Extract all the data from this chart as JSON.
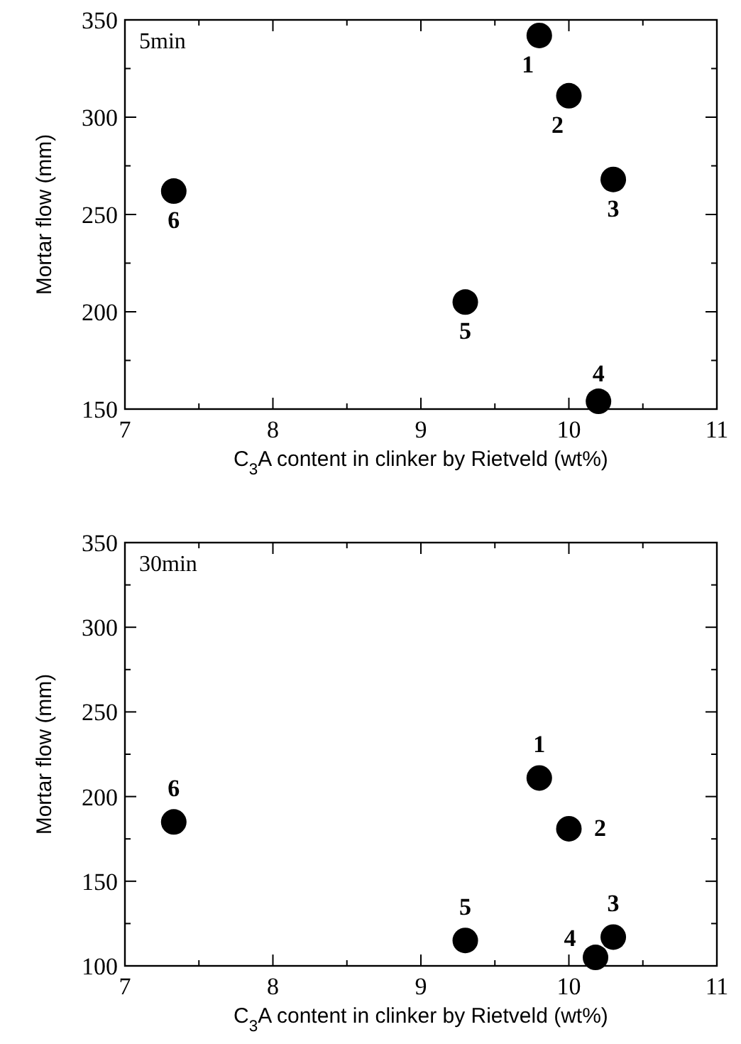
{
  "chart_data": [
    {
      "type": "scatter",
      "xlabel": "C$_{3}$A content in clinker by Rietveld (wt%)",
      "ylabel": "Mortar flow (mm)",
      "x": [
        9.8,
        10.0,
        10.3,
        10.2,
        9.3,
        7.33
      ],
      "values": [
        342,
        311,
        268,
        154,
        205,
        262
      ],
      "color": "#000000",
      "marker": "circle",
      "xlim": [
        7,
        11
      ],
      "ylim": [
        150,
        350
      ],
      "xticks": [
        7,
        {
          "value": 7.5,
          "label": null
        },
        8,
        {
          "value": 8.5,
          "label": null
        },
        9,
        {
          "value": 9.5,
          "label": null
        },
        10,
        {
          "value": 10.5,
          "label": null
        },
        11
      ],
      "yticks": [
        150,
        {
          "value": 175,
          "label": null
        },
        200,
        {
          "value": 225,
          "label": null
        },
        250,
        {
          "value": 275,
          "label": null
        },
        300,
        {
          "value": 325,
          "label": null
        },
        350
      ],
      "grid": false,
      "annotations": [
        "5min",
        {
          "text": "1",
          "x": 9.8,
          "y": 342
        },
        {
          "text": "2",
          "x": 10.0,
          "y": 311
        },
        {
          "text": "3",
          "x": 10.3,
          "y": 268
        },
        {
          "text": "4",
          "x": 10.2,
          "y": 154
        },
        {
          "text": "5",
          "x": 9.3,
          "y": 205
        },
        {
          "text": "6",
          "x": 7.33,
          "y": 262
        }
      ]
    },
    {
      "type": "scatter",
      "xlabel": "C$_{3}$A content in clinker by Rietveld (wt%)",
      "ylabel": "Mortar flow (mm)",
      "x": [
        9.8,
        10.0,
        10.3,
        10.18,
        9.3,
        7.33
      ],
      "values": [
        211,
        181,
        117,
        105,
        115,
        185
      ],
      "color": "#000000",
      "marker": "circle",
      "xlim": [
        7,
        11
      ],
      "ylim": [
        100,
        350
      ],
      "xticks": [
        7,
        {
          "value": 7.5,
          "label": null
        },
        8,
        {
          "value": 8.5,
          "label": null
        },
        9,
        {
          "value": 9.5,
          "label": null
        },
        10,
        {
          "value": 10.5,
          "label": null
        },
        11
      ],
      "yticks": [
        100,
        {
          "value": 125,
          "label": null
        },
        150,
        {
          "value": 175,
          "label": null
        },
        200,
        {
          "value": 225,
          "label": null
        },
        250,
        {
          "value": 275,
          "label": null
        },
        300,
        {
          "value": 325,
          "label": null
        },
        350
      ],
      "grid": false,
      "annotations": [
        "30min",
        {
          "text": "1",
          "x": 9.8,
          "y": 211
        },
        {
          "text": "2",
          "x": 10.0,
          "y": 181
        },
        {
          "text": "3",
          "x": 10.3,
          "y": 117
        },
        {
          "text": "4",
          "x": 10.18,
          "y": 105
        },
        {
          "text": "5",
          "x": 9.3,
          "y": 115
        },
        {
          "text": "6",
          "x": 7.33,
          "y": 185
        }
      ]
    }
  ]
}
